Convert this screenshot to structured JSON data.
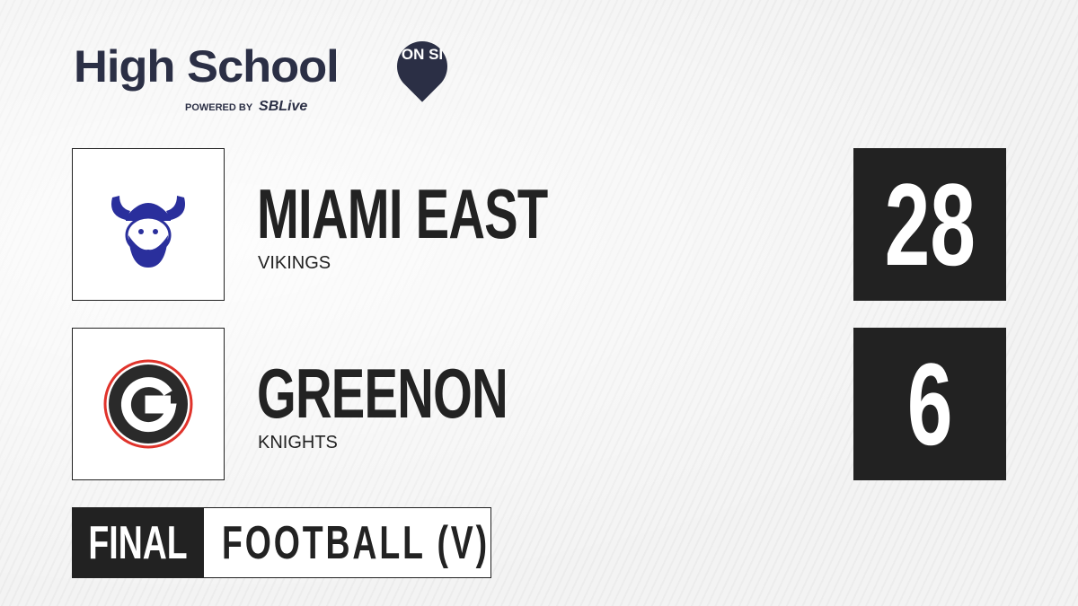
{
  "brand": {
    "title": "High School",
    "badge": "ON SI",
    "powered_by": "POWERED BY",
    "partner": "SBLive"
  },
  "teams": [
    {
      "name": "MIAMI EAST",
      "mascot": "VIKINGS",
      "score": "28",
      "logo": "viking-head-logo",
      "logo_color": "#2a2f9c"
    },
    {
      "name": "GREENON",
      "mascot": "KNIGHTS",
      "score": "6",
      "logo": "letter-g-logo",
      "logo_letter": "G",
      "logo_color": "#222222",
      "logo_ring": "#e0332b"
    }
  ],
  "status": "FINAL",
  "sport": "FOOTBALL (V)",
  "colors": {
    "brand": "#2b2f45",
    "accent": "#1fb0e8",
    "dark": "#222222"
  }
}
